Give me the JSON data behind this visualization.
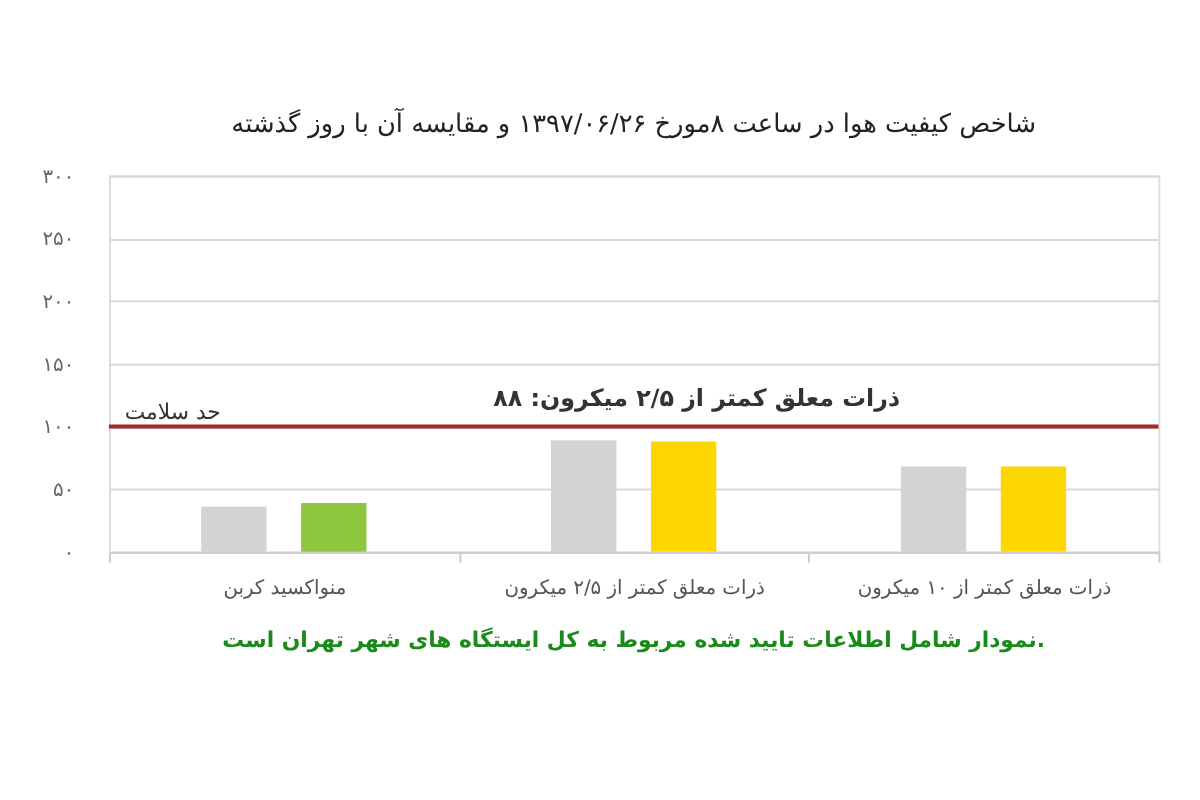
{
  "chart_data": {
    "type": "bar",
    "title": "شاخص کیفیت هوا در ساعت ۸مورخ ۱۳۹۷/۰۶/۲۶ و مقایسه آن با روز گذشته",
    "categories": [
      "منواکسید کربن",
      "ذرات معلق کمتر از ۲/۵ میکرون",
      "ذرات معلق کمتر از ۱۰ میکرون"
    ],
    "series": [
      {
        "color": "#d3d3d3",
        "values": [
          36,
          89,
          68
        ]
      },
      {
        "colors": [
          "#8dc63f",
          "#ffd700",
          "#ffd700"
        ],
        "values": [
          39,
          88,
          68
        ]
      }
    ],
    "ylim": [
      0,
      300
    ],
    "yticks": [
      {
        "value": 0,
        "label": "۰"
      },
      {
        "value": 50,
        "label": "۵۰"
      },
      {
        "value": 100,
        "label": "۱۰۰"
      },
      {
        "value": 150,
        "label": "۱۵۰"
      },
      {
        "value": 200,
        "label": "۲۰۰"
      },
      {
        "value": 250,
        "label": "۲۵۰"
      },
      {
        "value": 300,
        "label": "۳۰۰"
      }
    ],
    "grid": "y",
    "ref_lines": [
      {
        "axis": "y",
        "value": 100,
        "label": "حد سلامت",
        "color": "#9e2a2b"
      }
    ],
    "annotations": [
      "ذرات معلق کمتر از ۲/۵ میکرون: ۸۸",
      "نمودار شامل اطلاعات تایید شده مربوط به کل ایستگاه های شهر تهران است."
    ]
  }
}
